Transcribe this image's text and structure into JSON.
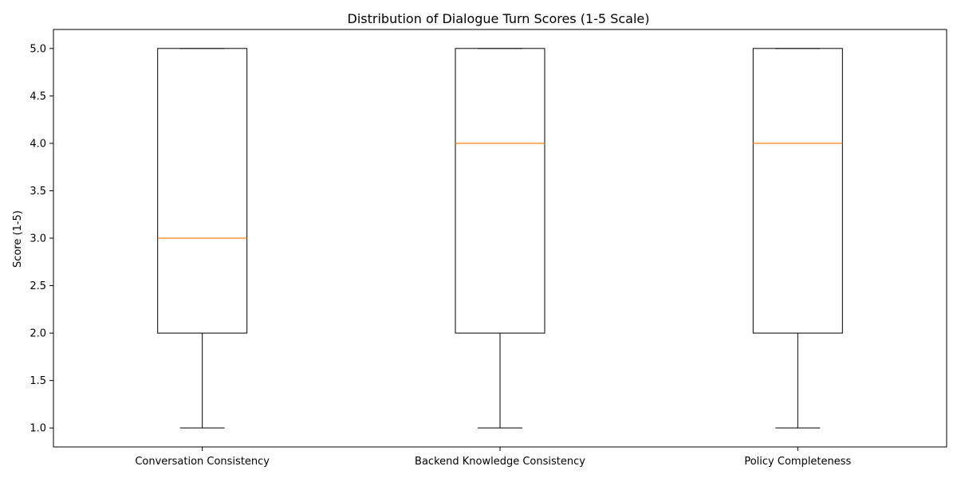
{
  "chart_data": {
    "type": "box",
    "title": "Distribution of Dialogue Turn Scores (1-5 Scale)",
    "xlabel": "",
    "ylabel": "Score (1-5)",
    "ylim": [
      0.8,
      5.2
    ],
    "yticks": [
      1.0,
      1.5,
      2.0,
      2.5,
      3.0,
      3.5,
      4.0,
      4.5,
      5.0
    ],
    "ytick_labels": [
      "1.0",
      "1.5",
      "2.0",
      "2.5",
      "3.0",
      "3.5",
      "4.0",
      "4.5",
      "5.0"
    ],
    "categories": [
      "Conversation Consistency",
      "Backend Knowledge Consistency",
      "Policy Completeness"
    ],
    "boxes": [
      {
        "whisker_low": 1,
        "q1": 2,
        "median": 3,
        "q3": 5,
        "whisker_high": 5
      },
      {
        "whisker_low": 1,
        "q1": 2,
        "median": 4,
        "q3": 5,
        "whisker_high": 5
      },
      {
        "whisker_low": 1,
        "q1": 2,
        "median": 4,
        "q3": 5,
        "whisker_high": 5
      }
    ],
    "grid": false,
    "colors": {
      "box": "#000000",
      "median": "#ff7f0e"
    }
  }
}
